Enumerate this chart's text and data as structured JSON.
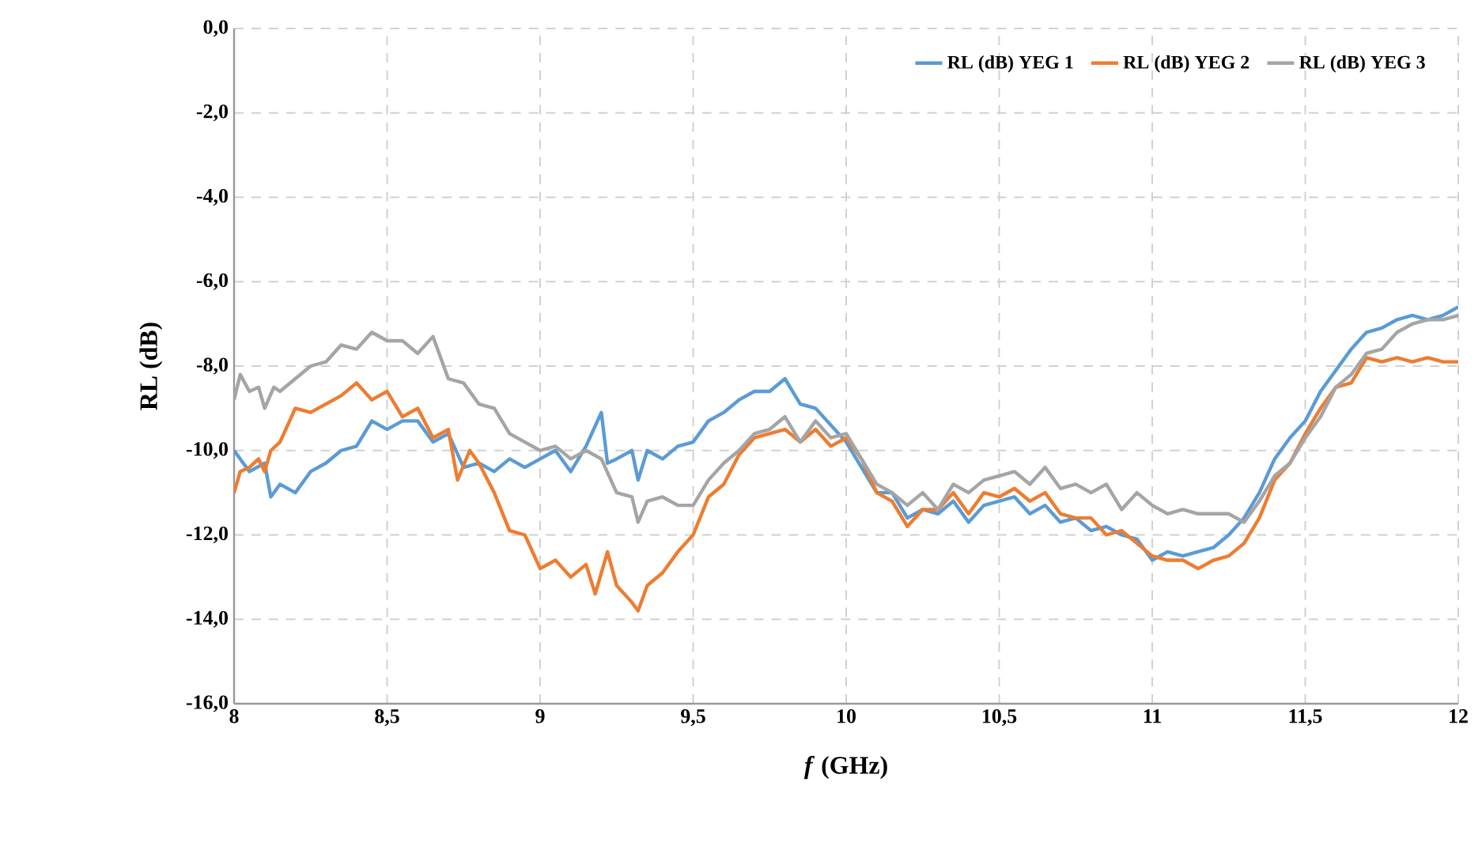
{
  "chart_data": {
    "type": "line",
    "xlabel": "*f* (GHz)",
    "ylabel": "RL (dB)",
    "xlim": [
      8,
      12
    ],
    "ylim": [
      -16,
      0
    ],
    "xticks": [
      8,
      {
        "value": 8.5,
        "label": "8,5"
      },
      9,
      {
        "value": 9.5,
        "label": "9,5"
      },
      10,
      {
        "value": 10.5,
        "label": "10,5"
      },
      11,
      {
        "value": 11.5,
        "label": "11,5"
      },
      12
    ],
    "yticks": [
      {
        "value": -16,
        "label": "-16,0"
      },
      {
        "value": -14,
        "label": "-14,0"
      },
      {
        "value": -12,
        "label": "-12,0"
      },
      {
        "value": -10,
        "label": "-10,0"
      },
      {
        "value": -8,
        "label": "-8,0"
      },
      {
        "value": -6,
        "label": "-6,0"
      },
      {
        "value": -4,
        "label": "-4,0"
      },
      {
        "value": -2,
        "label": "-2,0"
      },
      {
        "value": 0,
        "label": "0,0"
      }
    ],
    "grid": true,
    "legend": "top right",
    "marker": "none",
    "line_style": "solid",
    "series": [
      {
        "name": "RL (dB) YEG 1",
        "color": "#5b9bd5",
        "x": [
          8.0,
          8.05,
          8.1,
          8.12,
          8.15,
          8.2,
          8.25,
          8.3,
          8.35,
          8.4,
          8.45,
          8.5,
          8.55,
          8.6,
          8.65,
          8.7,
          8.75,
          8.8,
          8.85,
          8.9,
          8.95,
          9.0,
          9.05,
          9.1,
          9.15,
          9.2,
          9.22,
          9.25,
          9.3,
          9.32,
          9.35,
          9.4,
          9.45,
          9.5,
          9.55,
          9.6,
          9.65,
          9.7,
          9.75,
          9.8,
          9.85,
          9.9,
          9.95,
          10.0,
          10.05,
          10.1,
          10.15,
          10.2,
          10.25,
          10.3,
          10.35,
          10.4,
          10.45,
          10.5,
          10.55,
          10.6,
          10.65,
          10.7,
          10.75,
          10.8,
          10.85,
          10.9,
          10.95,
          11.0,
          11.05,
          11.1,
          11.15,
          11.2,
          11.25,
          11.3,
          11.35,
          11.4,
          11.45,
          11.5,
          11.55,
          11.6,
          11.65,
          11.7,
          11.75,
          11.8,
          11.85,
          11.9,
          11.95,
          12.0
        ],
        "values": [
          -10.0,
          -10.5,
          -10.3,
          -11.1,
          -10.8,
          -11.0,
          -10.5,
          -10.3,
          -10.0,
          -9.9,
          -9.3,
          -9.5,
          -9.3,
          -9.3,
          -9.8,
          -9.6,
          -10.4,
          -10.3,
          -10.5,
          -10.2,
          -10.4,
          -10.2,
          -10.0,
          -10.5,
          -9.9,
          -9.1,
          -10.3,
          -10.2,
          -10.0,
          -10.7,
          -10.0,
          -10.2,
          -9.9,
          -9.8,
          -9.3,
          -9.1,
          -8.8,
          -8.6,
          -8.6,
          -8.3,
          -8.9,
          -9.0,
          -9.4,
          -9.8,
          -10.4,
          -11.0,
          -11.0,
          -11.6,
          -11.4,
          -11.5,
          -11.2,
          -11.7,
          -11.3,
          -11.2,
          -11.1,
          -11.5,
          -11.3,
          -11.7,
          -11.6,
          -11.9,
          -11.8,
          -12.0,
          -12.1,
          -12.6,
          -12.4,
          -12.5,
          -12.4,
          -12.3,
          -12.0,
          -11.6,
          -11.0,
          -10.2,
          -9.7,
          -9.3,
          -8.6,
          -8.1,
          -7.6,
          -7.2,
          -7.1,
          -6.9,
          -6.8,
          -6.9,
          -6.8,
          -6.6
        ]
      },
      {
        "name": "RL (dB) YEG 2",
        "color": "#ed7d31",
        "x": [
          8.0,
          8.02,
          8.05,
          8.08,
          8.1,
          8.12,
          8.15,
          8.2,
          8.25,
          8.3,
          8.35,
          8.4,
          8.45,
          8.5,
          8.55,
          8.6,
          8.65,
          8.7,
          8.73,
          8.77,
          8.8,
          8.85,
          8.9,
          8.95,
          9.0,
          9.05,
          9.1,
          9.15,
          9.18,
          9.22,
          9.25,
          9.3,
          9.32,
          9.35,
          9.4,
          9.45,
          9.5,
          9.55,
          9.6,
          9.65,
          9.7,
          9.75,
          9.8,
          9.85,
          9.9,
          9.95,
          10.0,
          10.05,
          10.1,
          10.15,
          10.2,
          10.25,
          10.3,
          10.35,
          10.4,
          10.45,
          10.5,
          10.55,
          10.6,
          10.65,
          10.7,
          10.75,
          10.8,
          10.85,
          10.9,
          10.95,
          11.0,
          11.05,
          11.1,
          11.15,
          11.2,
          11.25,
          11.3,
          11.35,
          11.4,
          11.45,
          11.5,
          11.55,
          11.6,
          11.65,
          11.7,
          11.75,
          11.8,
          11.85,
          11.9,
          11.95,
          12.0
        ],
        "values": [
          -11.0,
          -10.5,
          -10.4,
          -10.2,
          -10.5,
          -10.0,
          -9.8,
          -9.0,
          -9.1,
          -8.9,
          -8.7,
          -8.4,
          -8.8,
          -8.6,
          -9.2,
          -9.0,
          -9.7,
          -9.5,
          -10.7,
          -10.0,
          -10.3,
          -11.0,
          -11.9,
          -12.0,
          -12.8,
          -12.6,
          -13.0,
          -12.7,
          -13.4,
          -12.4,
          -13.2,
          -13.6,
          -13.8,
          -13.2,
          -12.9,
          -12.4,
          -12.0,
          -11.1,
          -10.8,
          -10.1,
          -9.7,
          -9.6,
          -9.5,
          -9.8,
          -9.5,
          -9.9,
          -9.7,
          -10.2,
          -11.0,
          -11.2,
          -11.8,
          -11.4,
          -11.4,
          -11.0,
          -11.5,
          -11.0,
          -11.1,
          -10.9,
          -11.2,
          -11.0,
          -11.5,
          -11.6,
          -11.6,
          -12.0,
          -11.9,
          -12.2,
          -12.5,
          -12.6,
          -12.6,
          -12.8,
          -12.6,
          -12.5,
          -12.2,
          -11.6,
          -10.7,
          -10.3,
          -9.6,
          -9.0,
          -8.5,
          -8.4,
          -7.8,
          -7.9,
          -7.8,
          -7.9,
          -7.8,
          -7.9,
          -7.9
        ]
      },
      {
        "name": "RL (dB) YEG 3",
        "color": "#a5a5a5",
        "x": [
          8.0,
          8.02,
          8.05,
          8.08,
          8.1,
          8.13,
          8.15,
          8.2,
          8.25,
          8.3,
          8.35,
          8.4,
          8.45,
          8.5,
          8.55,
          8.6,
          8.65,
          8.7,
          8.75,
          8.8,
          8.85,
          8.9,
          8.95,
          9.0,
          9.05,
          9.1,
          9.15,
          9.2,
          9.25,
          9.3,
          9.32,
          9.35,
          9.4,
          9.45,
          9.5,
          9.55,
          9.6,
          9.65,
          9.7,
          9.75,
          9.8,
          9.85,
          9.9,
          9.95,
          10.0,
          10.05,
          10.1,
          10.15,
          10.2,
          10.25,
          10.3,
          10.35,
          10.4,
          10.45,
          10.5,
          10.55,
          10.6,
          10.65,
          10.7,
          10.75,
          10.8,
          10.85,
          10.9,
          10.95,
          11.0,
          11.05,
          11.1,
          11.15,
          11.2,
          11.25,
          11.3,
          11.35,
          11.4,
          11.45,
          11.5,
          11.55,
          11.6,
          11.65,
          11.7,
          11.75,
          11.8,
          11.85,
          11.9,
          11.95,
          12.0
        ],
        "values": [
          -8.8,
          -8.2,
          -8.6,
          -8.5,
          -9.0,
          -8.5,
          -8.6,
          -8.3,
          -8.0,
          -7.9,
          -7.5,
          -7.6,
          -7.2,
          -7.4,
          -7.4,
          -7.7,
          -7.3,
          -8.3,
          -8.4,
          -8.9,
          -9.0,
          -9.6,
          -9.8,
          -10.0,
          -9.9,
          -10.2,
          -10.0,
          -10.2,
          -11.0,
          -11.1,
          -11.7,
          -11.2,
          -11.1,
          -11.3,
          -11.3,
          -10.7,
          -10.3,
          -10.0,
          -9.6,
          -9.5,
          -9.2,
          -9.8,
          -9.3,
          -9.7,
          -9.6,
          -10.2,
          -10.8,
          -11.0,
          -11.3,
          -11.0,
          -11.4,
          -10.8,
          -11.0,
          -10.7,
          -10.6,
          -10.5,
          -10.8,
          -10.4,
          -10.9,
          -10.8,
          -11.0,
          -10.8,
          -11.4,
          -11.0,
          -11.3,
          -11.5,
          -11.4,
          -11.5,
          -11.5,
          -11.5,
          -11.7,
          -11.2,
          -10.6,
          -10.3,
          -9.7,
          -9.2,
          -8.5,
          -8.2,
          -7.7,
          -7.6,
          -7.2,
          -7.0,
          -6.9,
          -6.9,
          -6.8
        ]
      }
    ]
  }
}
